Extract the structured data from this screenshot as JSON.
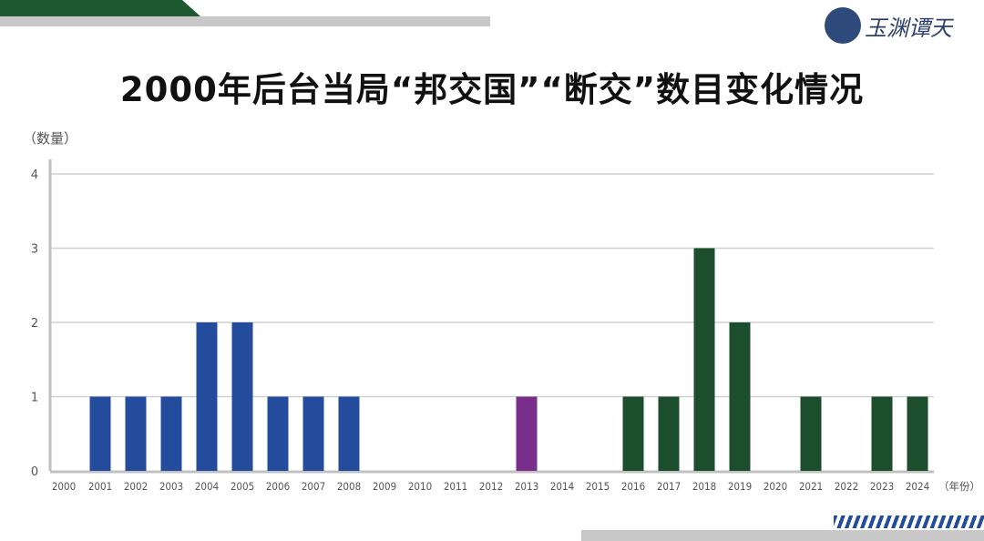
{
  "logo_text": "玉渊谭天",
  "chart_data": {
    "type": "bar",
    "title": "2000年后台当局“邦交国”“断交”数目变化情况",
    "ylabel": "（数量）",
    "xlabel": "（年份）",
    "ylim": [
      0,
      4
    ],
    "yticks": [
      0,
      1,
      2,
      3,
      4
    ],
    "grid": true,
    "categories": [
      "2000",
      "2001",
      "2002",
      "2003",
      "2004",
      "2005",
      "2006",
      "2007",
      "2008",
      "2009",
      "2010",
      "2011",
      "2012",
      "2013",
      "2014",
      "2015",
      "2016",
      "2017",
      "2018",
      "2019",
      "2020",
      "2021",
      "2022",
      "2023",
      "2024"
    ],
    "values": [
      0,
      1,
      1,
      1,
      2,
      2,
      1,
      1,
      1,
      0,
      0,
      0,
      0,
      1,
      0,
      0,
      1,
      1,
      3,
      2,
      0,
      1,
      0,
      1,
      1
    ],
    "colors": [
      "#244c9c",
      "#244c9c",
      "#244c9c",
      "#244c9c",
      "#244c9c",
      "#244c9c",
      "#244c9c",
      "#244c9c",
      "#244c9c",
      "#244c9c",
      "#244c9c",
      "#244c9c",
      "#244c9c",
      "#7a2e8c",
      "#1c4d2c",
      "#1c4d2c",
      "#1c4d2c",
      "#1c4d2c",
      "#1c4d2c",
      "#1c4d2c",
      "#1c4d2c",
      "#1c4d2c",
      "#1c4d2c",
      "#1c4d2c",
      "#1c4d2c"
    ]
  }
}
